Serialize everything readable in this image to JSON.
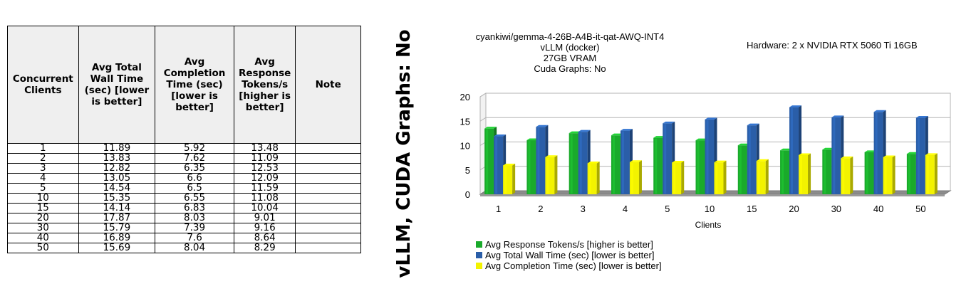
{
  "table": {
    "headers": {
      "clients": "Concurrent Clients",
      "wall": "Avg Total Wall Time (sec) [lower is better]",
      "completion": "Avg Completion Time (sec) [lower is better]",
      "tokens": "Avg Response Tokens/s [higher is better]",
      "note": "Note"
    },
    "rows": [
      {
        "clients": "1",
        "wall": "11.89",
        "completion": "5.92",
        "tokens": "13.48",
        "note": ""
      },
      {
        "clients": "2",
        "wall": "13.83",
        "completion": "7.62",
        "tokens": "11.09",
        "note": ""
      },
      {
        "clients": "3",
        "wall": "12.82",
        "completion": "6.35",
        "tokens": "12.53",
        "note": ""
      },
      {
        "clients": "4",
        "wall": "13.05",
        "completion": "6.6",
        "tokens": "12.09",
        "note": ""
      },
      {
        "clients": "5",
        "wall": "14.54",
        "completion": "6.5",
        "tokens": "11.59",
        "note": ""
      },
      {
        "clients": "10",
        "wall": "15.35",
        "completion": "6.55",
        "tokens": "11.08",
        "note": ""
      },
      {
        "clients": "15",
        "wall": "14.14",
        "completion": "6.83",
        "tokens": "10.04",
        "note": ""
      },
      {
        "clients": "20",
        "wall": "17.87",
        "completion": "8.03",
        "tokens": "9.01",
        "note": ""
      },
      {
        "clients": "30",
        "wall": "15.79",
        "completion": "7.39",
        "tokens": "9.16",
        "note": ""
      },
      {
        "clients": "40",
        "wall": "16.89",
        "completion": "7.6",
        "tokens": "8.64",
        "note": ""
      },
      {
        "clients": "50",
        "wall": "15.69",
        "completion": "8.04",
        "tokens": "8.29",
        "note": ""
      }
    ]
  },
  "side_title": "vLLM, CUDA Graphs: No",
  "chart_data": {
    "type": "bar",
    "title": [
      "cyankiwi/gemma-4-26B-A4B-it-qat-AWQ-INT4",
      "vLLM (docker)",
      "27GB VRAM",
      "Cuda Graphs: No"
    ],
    "annotation": "Hardware: 2 x NVIDIA RTX 5060 Ti 16GB",
    "xlabel": "Clients",
    "ylabel": "",
    "categories": [
      "1",
      "2",
      "3",
      "4",
      "5",
      "10",
      "15",
      "20",
      "30",
      "40",
      "50"
    ],
    "ylim": [
      0,
      20
    ],
    "yticks": [
      0,
      5,
      10,
      15,
      20
    ],
    "grid": true,
    "style": "3d",
    "legend_position": "bottom-left",
    "series": [
      {
        "name": "Avg Response Tokens/s [higher is better]",
        "color": "#1aaa2b",
        "values": [
          13.48,
          11.09,
          12.53,
          12.09,
          11.59,
          11.08,
          10.04,
          9.01,
          9.16,
          8.64,
          8.29
        ]
      },
      {
        "name": "Avg Total Wall Time (sec) [lower is better]",
        "color": "#2a5ea8",
        "values": [
          11.89,
          13.83,
          12.82,
          13.05,
          14.54,
          15.35,
          14.14,
          17.87,
          15.79,
          16.89,
          15.69
        ]
      },
      {
        "name": "Avg Completion Time (sec) [lower is better]",
        "color": "#f3f300",
        "values": [
          5.92,
          7.62,
          6.35,
          6.6,
          6.5,
          6.55,
          6.83,
          8.03,
          7.39,
          7.6,
          8.04
        ]
      }
    ]
  }
}
